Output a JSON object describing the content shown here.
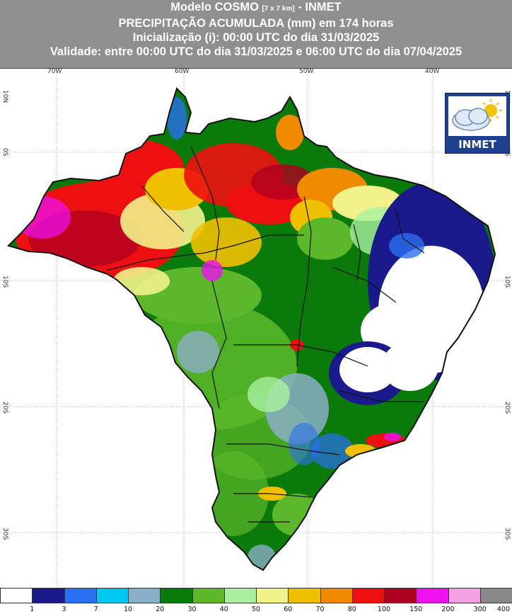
{
  "header": {
    "title_main": "Modelo COSMO",
    "title_grid": "[7 x 7 km]",
    "title_suffix": "- INMET",
    "subtitle": "PRECIPITAÇÃO ACUMULADA (mm) em 174 horas",
    "init": "Inicialização (i): 00:00 UTC do dia 31/03/2025",
    "validity": "Validade: entre 00:00 UTC do dia 31/03/2025 e 06:00 UTC do dia 07/04/2025"
  },
  "logo": {
    "text": "INMET",
    "icon": "cloud-sun-icon"
  },
  "axes": {
    "lon_labels": [
      "70W",
      "60W",
      "50W",
      "40W"
    ],
    "lat_labels": [
      "10N",
      "0S",
      "10S",
      "20S",
      "30S"
    ]
  },
  "legend": {
    "labels": [
      "1",
      "3",
      "7",
      "10",
      "20",
      "30",
      "40",
      "50",
      "60",
      "70",
      "80",
      "100",
      "150",
      "200",
      "300",
      "400"
    ],
    "colors": [
      "#ffffff",
      "#1a1a8c",
      "#2a6ff0",
      "#00c8f0",
      "#8aaec6",
      "#0a7a0a",
      "#5cb82a",
      "#a8f0a0",
      "#f2f28a",
      "#f0c000",
      "#f08a00",
      "#ee1010",
      "#b00020",
      "#ee10ee",
      "#f3a0e0",
      "#888888"
    ]
  },
  "colors": {
    "header_bg": "#8f8f8f",
    "ocean": "#ffffff",
    "land_base": "#0a7a0a"
  }
}
